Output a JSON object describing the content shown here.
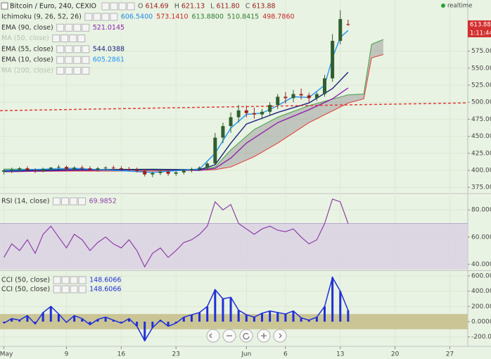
{
  "chart_data": [
    {
      "type": "candlestick",
      "title": "Bitcoin / Euro, 240, CEXIO",
      "status": "realtime",
      "countdown": "1:11:44",
      "header": [
        {
          "label": "O",
          "value": "614.69"
        },
        {
          "label": "H",
          "value": "621.13"
        },
        {
          "label": "L",
          "value": "611.80"
        },
        {
          "label": "C",
          "value": "613.88"
        }
      ],
      "x": [
        1,
        2,
        3,
        4,
        5,
        6,
        7,
        8,
        9,
        10,
        11,
        12,
        13,
        14,
        15,
        16,
        17,
        18,
        19,
        20,
        21,
        22,
        23,
        24,
        25,
        26,
        27,
        28,
        29,
        30,
        31,
        32,
        33,
        34,
        35,
        36,
        37,
        38,
        39,
        40,
        41,
        42,
        43,
        44,
        45
      ],
      "open": [
        398,
        400,
        401,
        403,
        400,
        399,
        402,
        404,
        405,
        402,
        404,
        403,
        401,
        403,
        404,
        403,
        402,
        401,
        399,
        394,
        396,
        398,
        395,
        397,
        400,
        402,
        404,
        410,
        448,
        465,
        478,
        488,
        484,
        482,
        486,
        496,
        508,
        506,
        512,
        510,
        506,
        512,
        535,
        590,
        614.69
      ],
      "high": [
        402,
        404,
        405,
        406,
        403,
        404,
        405,
        408,
        407,
        406,
        407,
        406,
        405,
        406,
        407,
        406,
        405,
        404,
        402,
        398,
        400,
        401,
        399,
        402,
        404,
        406,
        412,
        455,
        470,
        485,
        496,
        495,
        492,
        490,
        500,
        512,
        515,
        518,
        520,
        514,
        515,
        540,
        600,
        635,
        621.13
      ],
      "low": [
        394,
        396,
        398,
        399,
        396,
        397,
        399,
        401,
        400,
        399,
        401,
        400,
        398,
        400,
        401,
        399,
        399,
        397,
        391,
        390,
        393,
        392,
        392,
        394,
        397,
        399,
        401,
        408,
        440,
        455,
        470,
        478,
        476,
        475,
        480,
        490,
        498,
        500,
        504,
        500,
        502,
        508,
        530,
        585,
        611.8
      ],
      "close": [
        400,
        401,
        403,
        400,
        399,
        402,
        404,
        405,
        402,
        404,
        403,
        401,
        403,
        404,
        403,
        402,
        401,
        399,
        394,
        396,
        398,
        395,
        397,
        400,
        402,
        404,
        410,
        448,
        465,
        478,
        488,
        484,
        482,
        486,
        496,
        508,
        506,
        512,
        510,
        506,
        512,
        535,
        590,
        622,
        613.88
      ],
      "up_color": "#2f5f2f",
      "down_color": "#9a2020",
      "last_price_color": "#d32f2f",
      "studies": [
        {
          "label": "Ichimoku (9, 26, 52, 26)",
          "readings": [
            "606.5400",
            "573.1410",
            "613.8800",
            "510.8415",
            "498.7860"
          ],
          "reading_colors": [
            "#1e88e5",
            "#c62828",
            "#2e7d32",
            "#2e7d32",
            "#c62828"
          ]
        },
        {
          "label": "EMA (90, close)",
          "color": "#8e24aa",
          "x": [
            1,
            10,
            20,
            26,
            28,
            30,
            32,
            36,
            40,
            43,
            45
          ],
          "values": [
            398,
            400,
            401,
            400,
            403,
            418,
            440,
            470,
            489,
            505,
            521.0145
          ]
        },
        {
          "label": "MA (50, close)",
          "hidden": true
        },
        {
          "label": "EMA (55, close)",
          "color": "#1a237e",
          "x": [
            1,
            10,
            20,
            26,
            28,
            30,
            32,
            36,
            40,
            43,
            45
          ],
          "values": [
            399,
            401,
            401,
            401,
            408,
            440,
            468,
            485,
            499,
            520,
            544.0388
          ]
        },
        {
          "label": "EMA (10, close)",
          "color": "#2196f3",
          "x": [
            1,
            10,
            20,
            26,
            28,
            30,
            32,
            34,
            36,
            38,
            40,
            42,
            43,
            44,
            45
          ],
          "values": [
            400,
            403,
            397,
            402,
            425,
            462,
            482,
            484,
            495,
            508,
            507,
            525,
            565,
            595,
            605.2861
          ]
        },
        {
          "label": "MA (200, close)",
          "hidden": true
        }
      ],
      "cloud": {
        "x": [
          1,
          10,
          20,
          26,
          28,
          30,
          33,
          36,
          40,
          45,
          47,
          48,
          49.5
        ],
        "span_a": [
          402,
          401,
          402,
          401,
          405,
          430,
          460,
          478,
          495,
          510.8415,
          512,
          585,
          592
        ],
        "span_b": [
          398,
          399,
          399,
          400,
          401,
          405,
          420,
          440,
          470,
          498.786,
          505,
          565,
          570
        ],
        "span_a_color": "#43a047",
        "span_b_color": "#e53935",
        "fill_color": "#8f8f8f"
      },
      "trendline": {
        "x": [
          0.5,
          60.3
        ],
        "values": [
          487.6,
          499
        ],
        "color": "#e53935"
      },
      "xlim": [
        0.5,
        60.3
      ],
      "ylim": [
        369,
        650
      ],
      "yticks": [
        {
          "value": 375,
          "label": "375.00"
        },
        {
          "value": 400,
          "label": "400.00"
        },
        {
          "value": 425,
          "label": "425.00"
        },
        {
          "value": 450,
          "label": "450.00"
        },
        {
          "value": 475,
          "label": "475.00"
        },
        {
          "value": 500,
          "label": "500.00"
        },
        {
          "value": 525,
          "label": "525.00"
        },
        {
          "value": 550,
          "label": "550.00"
        },
        {
          "value": 575,
          "label": "575.00"
        }
      ],
      "grid": true
    },
    {
      "type": "line",
      "studies": [
        {
          "label": "RSI (14, close)"
        }
      ],
      "color": "#8e3fa7",
      "band": [
        30,
        70
      ],
      "band_color": "#d9d0e4",
      "x": [
        1,
        2,
        3,
        4,
        5,
        6,
        7,
        8,
        9,
        10,
        11,
        12,
        13,
        14,
        15,
        16,
        17,
        18,
        19,
        20,
        21,
        22,
        23,
        24,
        25,
        26,
        27,
        28,
        29,
        30,
        31,
        32,
        33,
        34,
        35,
        36,
        37,
        38,
        39,
        40,
        41,
        42,
        43,
        44,
        45
      ],
      "values": [
        45,
        55,
        50,
        58,
        48,
        62,
        68,
        60,
        52,
        62,
        58,
        50,
        56,
        60,
        55,
        52,
        58,
        50,
        38,
        48,
        52,
        45,
        50,
        56,
        58,
        62,
        68,
        86,
        80,
        84,
        70,
        66,
        62,
        66,
        68,
        65,
        64,
        66,
        60,
        55,
        58,
        70,
        88,
        86,
        69.9852
      ],
      "xlim": [
        0.5,
        60.3
      ],
      "ylim": [
        36,
        90.5
      ],
      "yticks": [
        {
          "value": 80,
          "label": "80.0000"
        },
        {
          "value": 60,
          "label": "60.0000"
        },
        {
          "value": 40,
          "label": "40.0000"
        }
      ],
      "grid": true
    },
    {
      "type": "bar",
      "studies": [
        {
          "label": "CCI (50, close)"
        },
        {
          "label": "CCI (50, close)"
        }
      ],
      "color": "#1f2fd6",
      "band": [
        -100,
        100
      ],
      "band_color": "#cbc596",
      "x": [
        1,
        2,
        3,
        4,
        5,
        6,
        7,
        8,
        9,
        10,
        11,
        12,
        13,
        14,
        15,
        16,
        17,
        18,
        19,
        20,
        21,
        22,
        23,
        24,
        25,
        26,
        27,
        28,
        29,
        30,
        31,
        32,
        33,
        34,
        35,
        36,
        37,
        38,
        39,
        40,
        41,
        42,
        43,
        44,
        45
      ],
      "values": [
        -20,
        40,
        20,
        80,
        -30,
        120,
        200,
        100,
        -10,
        80,
        40,
        -40,
        30,
        60,
        20,
        -20,
        40,
        -60,
        -250,
        -80,
        20,
        -60,
        -20,
        60,
        90,
        120,
        200,
        420,
        300,
        320,
        150,
        90,
        60,
        110,
        140,
        120,
        100,
        140,
        50,
        20,
        60,
        200,
        580,
        400,
        148.6066
      ],
      "xlim": [
        0.5,
        60.3
      ],
      "ylim": [
        -305,
        655
      ],
      "yticks": [
        {
          "value": 600,
          "label": "600.0000"
        },
        {
          "value": 400,
          "label": "400.0000"
        },
        {
          "value": 200,
          "label": "200.0000"
        },
        {
          "value": 0,
          "label": "0.0000"
        },
        {
          "value": -200,
          "label": "-200.0000"
        }
      ],
      "xticks": [
        {
          "value": 1,
          "label": "May"
        },
        {
          "value": 9,
          "label": "9"
        },
        {
          "value": 16,
          "label": "16"
        },
        {
          "value": 23,
          "label": "23"
        },
        {
          "value": 32,
          "label": "Jun"
        },
        {
          "value": 37,
          "label": "6"
        },
        {
          "value": 44,
          "label": "13"
        },
        {
          "value": 51,
          "label": "20"
        },
        {
          "value": 58,
          "label": "27"
        }
      ],
      "grid": true
    }
  ]
}
